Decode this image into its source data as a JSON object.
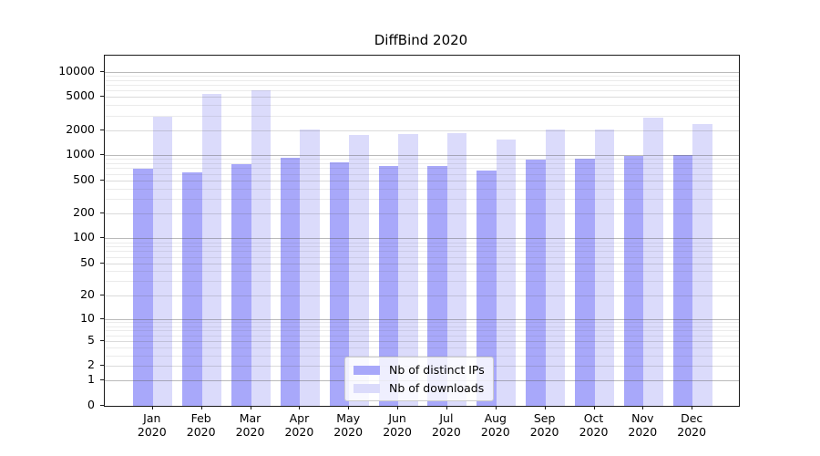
{
  "title": "DiffBind 2020",
  "legend": {
    "items": [
      {
        "label": "Nb of distinct IPs",
        "color": "#a8a8fa"
      },
      {
        "label": "Nb of downloads",
        "color": "#dbdbfb"
      }
    ]
  },
  "chart_data": {
    "type": "bar",
    "title": "DiffBind 2020",
    "categories": [
      "Jan 2020",
      "Feb 2020",
      "Mar 2020",
      "Apr 2020",
      "May 2020",
      "Jun 2020",
      "Jul 2020",
      "Aug 2020",
      "Sep 2020",
      "Oct 2020",
      "Nov 2020",
      "Dec 2020"
    ],
    "series": [
      {
        "name": "Nb of distinct IPs",
        "color": "#a8a8fa",
        "values": [
          695,
          620,
          780,
          925,
          830,
          745,
          745,
          650,
          885,
          910,
          990,
          1005
        ]
      },
      {
        "name": "Nb of downloads",
        "color": "#dbdbfb",
        "values": [
          2880,
          5460,
          6040,
          2050,
          1755,
          1785,
          1820,
          1530,
          2055,
          2045,
          2800,
          2390
        ]
      }
    ],
    "xlabel": "",
    "ylabel": "",
    "yscale": "quasi-log (log10(1+v))",
    "yticks": [
      0,
      1,
      2,
      5,
      10,
      20,
      50,
      100,
      200,
      500,
      1000,
      2000,
      5000,
      10000
    ],
    "ytick_labels": [
      "0",
      "1",
      "2",
      "5",
      "10",
      "20",
      "50",
      "100",
      "200",
      "500",
      "1000",
      "2000",
      "5000",
      "10000"
    ],
    "ylim": [
      0,
      15600
    ],
    "grid": true,
    "legend_position": "lower center"
  }
}
